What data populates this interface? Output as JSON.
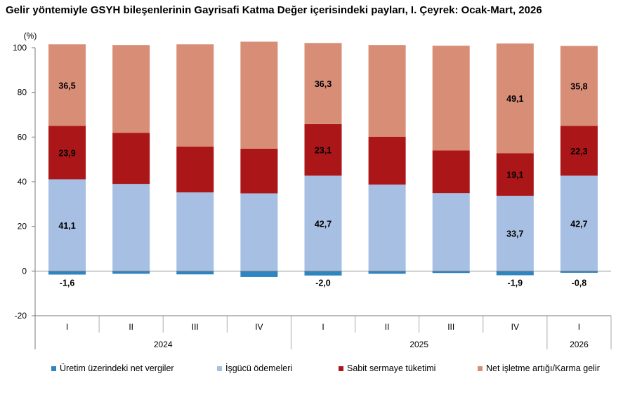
{
  "title": "Gelir yöntemiyle GSYH bileşenlerinin Gayrisafi Katma Değer içerisindeki payları, I. Çeyrek: Ocak-Mart, 2026",
  "colors": {
    "net_taxes": "#2e85c0",
    "compensation": "#a7bfe2",
    "fixed_capital": "#ab1618",
    "operating_surplus": "#d88d77"
  },
  "legend": [
    {
      "label": "Üretim üzerindeki net vergiler",
      "color_key": "net_taxes"
    },
    {
      "label": "İşgücü ödemeleri",
      "color_key": "compensation"
    },
    {
      "label": "Sabit sermaye tüketimi",
      "color_key": "fixed_capital"
    },
    {
      "label": "Net işletme artığı/Karma gelir",
      "color_key": "operating_surplus"
    }
  ],
  "chart_data": {
    "type": "bar",
    "stacked": true,
    "ylabel": "(%)",
    "ylim": [
      -20,
      100
    ],
    "yticks": [
      -20,
      0,
      20,
      40,
      60,
      80,
      100
    ],
    "grid": false,
    "legend_position": "bottom",
    "categories": [
      "I",
      "II",
      "III",
      "IV",
      "I",
      "II",
      "III",
      "IV",
      "I"
    ],
    "year_groups": [
      {
        "label": "2024",
        "start": 0,
        "count": 4
      },
      {
        "label": "2025",
        "start": 4,
        "count": 4
      },
      {
        "label": "2026",
        "start": 8,
        "count": 1
      }
    ],
    "series": [
      {
        "name": "Üretim üzerindeki net vergiler",
        "color_key": "net_taxes",
        "values": [
          -1.6,
          -1.2,
          -1.5,
          -2.7,
          -2.0,
          -1.2,
          -0.9,
          -1.9,
          -0.8
        ],
        "labels": [
          "-1,6",
          "",
          "",
          "",
          "-2,0",
          "",
          "",
          "-1,9",
          "-0,8"
        ]
      },
      {
        "name": "İşgücü ödemeleri",
        "color_key": "compensation",
        "values": [
          41.1,
          39.0,
          35.2,
          34.8,
          42.7,
          38.7,
          34.9,
          33.7,
          42.7
        ],
        "labels": [
          "41,1",
          "",
          "",
          "",
          "42,7",
          "",
          "",
          "33,7",
          "42,7"
        ]
      },
      {
        "name": "Sabit sermaye tüketimi",
        "color_key": "fixed_capital",
        "values": [
          23.9,
          22.9,
          20.5,
          20.0,
          23.1,
          21.4,
          19.1,
          19.1,
          22.3
        ],
        "labels": [
          "23,9",
          "",
          "",
          "",
          "23,1",
          "",
          "",
          "19,1",
          "22,3"
        ]
      },
      {
        "name": "Net işletme artığı/Karma gelir",
        "color_key": "operating_surplus",
        "values": [
          36.5,
          39.3,
          45.8,
          47.9,
          36.3,
          41.1,
          46.9,
          49.1,
          35.8
        ],
        "labels": [
          "36,5",
          "",
          "",
          "",
          "36,3",
          "",
          "",
          "49,1",
          "35,8"
        ]
      }
    ]
  }
}
